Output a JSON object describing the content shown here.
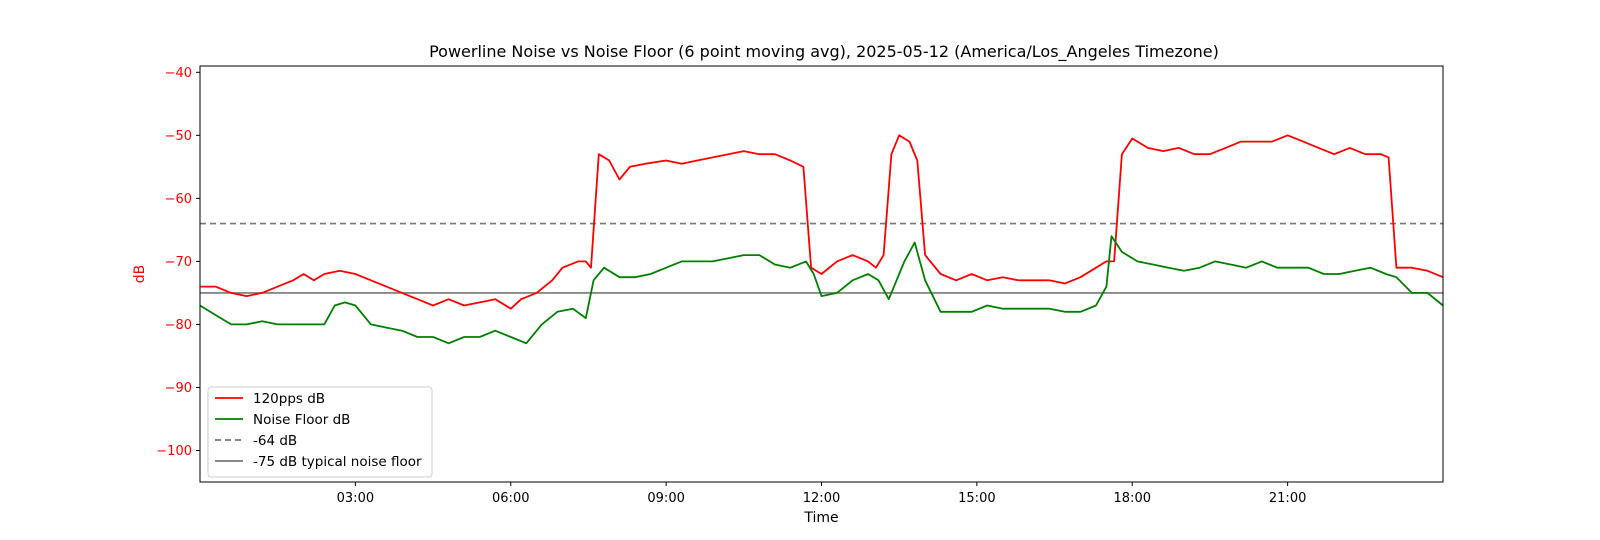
{
  "chart_data": {
    "type": "line",
    "title": "Powerline Noise vs Noise Floor (6 point moving avg), 2025-05-12 (America/Los_Angeles Timezone)",
    "xlabel": "Time",
    "ylabel": "dB",
    "xlim_hours": [
      0,
      24
    ],
    "ylim": [
      -105,
      -39
    ],
    "x_ticks": [
      {
        "hour": 3,
        "label": "03:00"
      },
      {
        "hour": 6,
        "label": "06:00"
      },
      {
        "hour": 9,
        "label": "09:00"
      },
      {
        "hour": 12,
        "label": "12:00"
      },
      {
        "hour": 15,
        "label": "15:00"
      },
      {
        "hour": 18,
        "label": "18:00"
      },
      {
        "hour": 21,
        "label": "21:00"
      }
    ],
    "y_ticks": [
      {
        "value": -40,
        "label": "−40"
      },
      {
        "value": -50,
        "label": "−50"
      },
      {
        "value": -60,
        "label": "−60"
      },
      {
        "value": -70,
        "label": "−70"
      },
      {
        "value": -80,
        "label": "−80"
      },
      {
        "value": -90,
        "label": "−90"
      },
      {
        "value": -100,
        "label": "−100"
      }
    ],
    "grid": false,
    "legend_position": "lower-left",
    "ylabel_color": "#ff0000",
    "series": [
      {
        "name": "120pps dB",
        "color": "#ff0000",
        "x": [
          0,
          0.3,
          0.6,
          0.9,
          1.2,
          1.5,
          1.8,
          2.0,
          2.2,
          2.4,
          2.7,
          3.0,
          3.3,
          3.6,
          3.9,
          4.2,
          4.5,
          4.8,
          5.1,
          5.4,
          5.7,
          6.0,
          6.2,
          6.5,
          6.8,
          7.0,
          7.3,
          7.45,
          7.55,
          7.7,
          7.9,
          8.1,
          8.3,
          8.6,
          9.0,
          9.3,
          9.6,
          9.9,
          10.2,
          10.5,
          10.8,
          11.1,
          11.4,
          11.65,
          11.8,
          12.0,
          12.3,
          12.6,
          12.9,
          13.05,
          13.2,
          13.35,
          13.5,
          13.7,
          13.85,
          14.0,
          14.3,
          14.6,
          14.9,
          15.2,
          15.5,
          15.8,
          16.1,
          16.4,
          16.7,
          17.0,
          17.3,
          17.5,
          17.65,
          17.8,
          18.0,
          18.3,
          18.6,
          18.9,
          19.2,
          19.5,
          19.8,
          20.1,
          20.4,
          20.7,
          21.0,
          21.3,
          21.6,
          21.9,
          22.2,
          22.5,
          22.8,
          22.95,
          23.1,
          23.4,
          23.7,
          24.0
        ],
        "values": [
          -74,
          -74,
          -75,
          -75.5,
          -75,
          -74,
          -73,
          -72,
          -73,
          -72,
          -71.5,
          -72,
          -73,
          -74,
          -75,
          -76,
          -77,
          -76,
          -77,
          -76.5,
          -76,
          -77.5,
          -76,
          -75,
          -73,
          -71,
          -70,
          -70,
          -71,
          -53,
          -54,
          -57,
          -55,
          -54.5,
          -54,
          -54.5,
          -54,
          -53.5,
          -53,
          -52.5,
          -53,
          -53,
          -54,
          -55,
          -71,
          -72,
          -70,
          -69,
          -70,
          -71,
          -69,
          -53,
          -50,
          -51,
          -54,
          -69,
          -72,
          -73,
          -72,
          -73,
          -72.5,
          -73,
          -73,
          -73,
          -73.5,
          -72.5,
          -71,
          -70,
          -70,
          -53,
          -50.5,
          -52,
          -52.5,
          -52,
          -53,
          -53,
          -52,
          -51,
          -51,
          -51,
          -50,
          -51,
          -52,
          -53,
          -52,
          -53,
          -53,
          -53.5,
          -71,
          -71,
          -71.5,
          -72.5
        ]
      },
      {
        "name": "Noise Floor dB",
        "color": "#008000",
        "x": [
          0,
          0.3,
          0.6,
          0.9,
          1.2,
          1.5,
          1.8,
          2.1,
          2.4,
          2.6,
          2.8,
          3.0,
          3.3,
          3.6,
          3.9,
          4.2,
          4.5,
          4.8,
          5.1,
          5.4,
          5.7,
          6.0,
          6.3,
          6.6,
          6.9,
          7.2,
          7.45,
          7.6,
          7.8,
          8.1,
          8.4,
          8.7,
          9.0,
          9.3,
          9.6,
          9.9,
          10.2,
          10.5,
          10.8,
          11.1,
          11.4,
          11.7,
          11.85,
          12.0,
          12.3,
          12.6,
          12.9,
          13.1,
          13.3,
          13.6,
          13.8,
          14.0,
          14.3,
          14.6,
          14.9,
          15.2,
          15.5,
          15.8,
          16.1,
          16.4,
          16.7,
          17.0,
          17.3,
          17.5,
          17.6,
          17.8,
          18.1,
          18.4,
          18.7,
          19.0,
          19.3,
          19.6,
          19.9,
          20.2,
          20.5,
          20.8,
          21.1,
          21.4,
          21.7,
          22.0,
          22.3,
          22.6,
          22.9,
          23.1,
          23.4,
          23.7,
          24.0
        ],
        "values": [
          -77,
          -78.5,
          -80,
          -80,
          -79.5,
          -80,
          -80,
          -80,
          -80,
          -77,
          -76.5,
          -77,
          -80,
          -80.5,
          -81,
          -82,
          -82,
          -83,
          -82,
          -82,
          -81,
          -82,
          -83,
          -80,
          -78,
          -77.5,
          -79,
          -73,
          -71,
          -72.5,
          -72.5,
          -72,
          -71,
          -70,
          -70,
          -70,
          -69.5,
          -69,
          -69,
          -70.5,
          -71,
          -70,
          -72,
          -75.5,
          -75,
          -73,
          -72,
          -73,
          -76,
          -70,
          -67,
          -73,
          -78,
          -78,
          -78,
          -77,
          -77.5,
          -77.5,
          -77.5,
          -77.5,
          -78,
          -78,
          -77,
          -74,
          -66,
          -68.5,
          -70,
          -70.5,
          -71,
          -71.5,
          -71,
          -70,
          -70.5,
          -71,
          -70,
          -71,
          -71,
          -71,
          -72,
          -72,
          -71.5,
          -71,
          -72,
          -72.5,
          -75,
          -75,
          -77
        ]
      }
    ],
    "reference_lines": [
      {
        "name": "-64 dB",
        "value": -64,
        "color": "#777777",
        "style": "dashed"
      },
      {
        "name": "-75 dB typical noise floor",
        "value": -75,
        "color": "#777777",
        "style": "solid"
      }
    ]
  }
}
